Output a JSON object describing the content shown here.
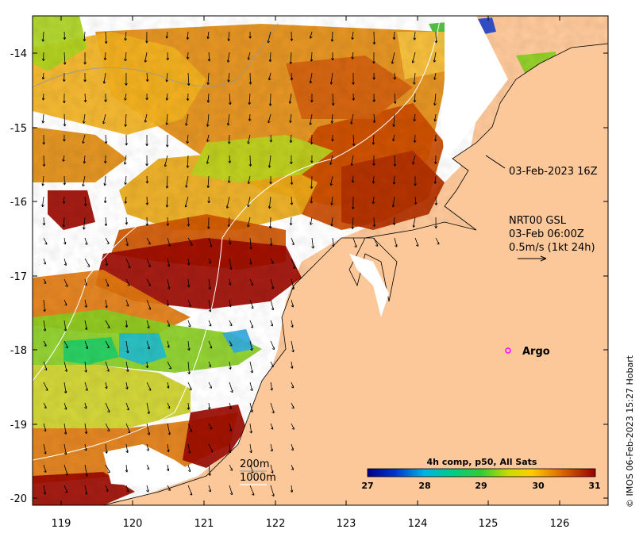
{
  "map": {
    "lon_ticks": [
      "119",
      "120",
      "121",
      "122",
      "123",
      "124",
      "125",
      "126"
    ],
    "lat_ticks": [
      "-14",
      "-15",
      "-16",
      "-17",
      "-18",
      "-19",
      "-20"
    ],
    "lon_range": [
      118.6,
      126.7
    ],
    "lat_range": [
      -20.1,
      -13.5
    ]
  },
  "annotations": {
    "timestamp": "03-Feb-2023 16Z",
    "current_source": "NRT00 GSL",
    "current_time": "03-Feb 06:00Z",
    "current_scale": "0.5m/s (1kt 24h)",
    "argo_label": "Argo"
  },
  "isobaths": {
    "label_200": "200m",
    "label_1000": "1000m"
  },
  "colorbar": {
    "title": "4h comp, p50, All Sats",
    "ticks": [
      "27",
      "28",
      "29",
      "30",
      "31"
    ],
    "range": [
      27,
      31
    ]
  },
  "credit": "© IMOS 06-Feb-2023 15:27 Hobart",
  "colors": {
    "land": "#fcc89a",
    "no_data": "#ffffff",
    "argo_marker": "#ff00ff"
  }
}
